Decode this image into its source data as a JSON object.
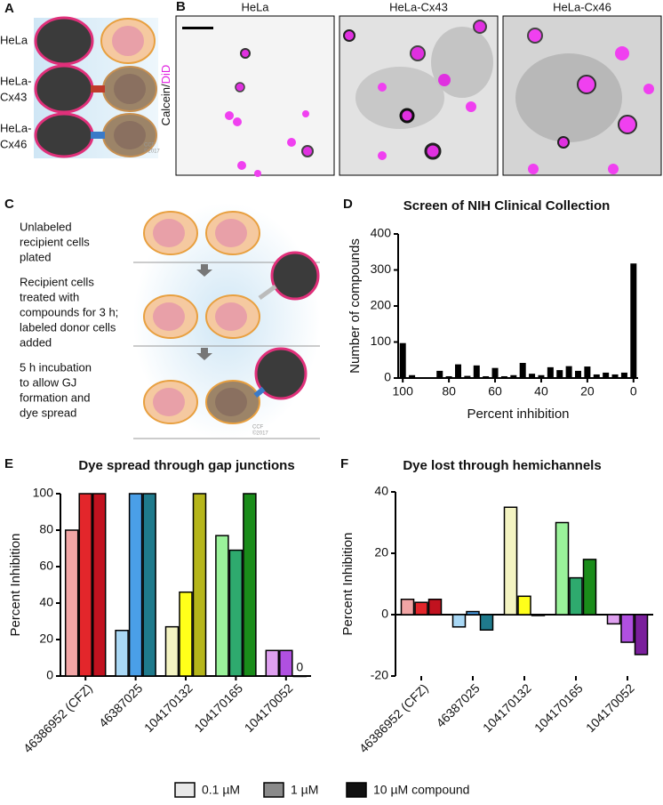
{
  "panel_labels": [
    "A",
    "B",
    "C",
    "D",
    "E",
    "F"
  ],
  "panel_a": {
    "rows": [
      [
        "HeLa"
      ],
      [
        "HeLa-",
        "Cx43"
      ],
      [
        "HeLa-",
        "Cx46"
      ]
    ],
    "credit": [
      "CCF",
      "©2017"
    ]
  },
  "panel_b": {
    "titles": [
      "HeLa",
      "HeLa-Cx43",
      "HeLa-Cx46"
    ],
    "stain": [
      "Calcein/",
      "DiD"
    ]
  },
  "panel_c": {
    "steps": [
      [
        "Unlabeled",
        "recipient cells",
        "plated"
      ],
      [
        "Recipient cells",
        "treated with",
        "compounds for 3 h;",
        "labeled donor cells",
        "added"
      ],
      [
        "5 h incubation",
        "to allow GJ",
        "formation and",
        "dye spread"
      ]
    ],
    "credit": [
      "CCF",
      "©2017"
    ]
  },
  "chart_data": [
    {
      "type": "histogram",
      "title": "Screen of  NIH Clinical Collection",
      "x_label": "Percent inhibition",
      "y_label": "Number of compounds",
      "x": [
        100,
        96,
        92,
        88,
        84,
        80,
        76,
        72,
        68,
        64,
        60,
        56,
        52,
        48,
        44,
        40,
        36,
        32,
        28,
        24,
        20,
        16,
        12,
        8,
        4,
        0
      ],
      "values": [
        97,
        8,
        0,
        2,
        20,
        5,
        38,
        6,
        35,
        5,
        28,
        5,
        8,
        42,
        12,
        8,
        30,
        22,
        33,
        20,
        32,
        10,
        15,
        10,
        15,
        318
      ],
      "color": "#000000",
      "xlim": [
        102,
        -2
      ],
      "xticks": [
        100,
        80,
        60,
        40,
        20,
        0
      ],
      "ylim": [
        0,
        400
      ],
      "yticks": [
        0,
        100,
        200,
        300,
        400
      ]
    },
    {
      "type": "grouped_bar",
      "title": "Dye spread through gap junctions",
      "y_label": "Percent Inhibition",
      "categories": [
        "46386952 (CFZ)",
        "46387025",
        "104170132",
        "104170165",
        "104170052"
      ],
      "series": [
        {
          "name": "0.1 µM",
          "color": "#e8e8e8",
          "bar_colors": [
            "#f2a5a5",
            "#a9d8f5",
            "#f4f4c2",
            "#9af29a",
            "#dfa0f0"
          ],
          "values": [
            80,
            25,
            27,
            77,
            14
          ]
        },
        {
          "name": "1 µM",
          "color": "#8a8a8a",
          "bar_colors": [
            "#e3262b",
            "#4a9fe8",
            "#ffff1a",
            "#2eaa6e",
            "#b050e0"
          ],
          "values": [
            100,
            100,
            46,
            69,
            14
          ]
        },
        {
          "name": "10 µM compound",
          "color": "#111111",
          "bar_colors": [
            "#c1121f",
            "#1f7a8c",
            "#b5b51a",
            "#1a8c1a",
            "#7a1f9c"
          ],
          "values": [
            100,
            100,
            100,
            100,
            0
          ]
        }
      ],
      "ylim": [
        0,
        100
      ],
      "yticks": [
        0,
        20,
        40,
        60,
        80,
        100
      ],
      "zero_labels": true
    },
    {
      "type": "grouped_bar",
      "title": "Dye lost through hemichannels",
      "y_label": "Percent Inhibition",
      "categories": [
        "46386952 (CFZ)",
        "46387025",
        "104170132",
        "104170165",
        "104170052"
      ],
      "series": [
        {
          "bar_colors": [
            "#f2a5a5",
            "#a9d8f5",
            "#f4f4c2",
            "#9af29a",
            "#dfa0f0"
          ],
          "values": [
            5,
            -4,
            35,
            30,
            -3
          ]
        },
        {
          "bar_colors": [
            "#e3262b",
            "#4a9fe8",
            "#ffff1a",
            "#2eaa6e",
            "#b050e0"
          ],
          "values": [
            4,
            1,
            6,
            12,
            -9
          ]
        },
        {
          "bar_colors": [
            "#c1121f",
            "#1f7a8c",
            "#b5b51a",
            "#1a8c1a",
            "#7a1f9c"
          ],
          "values": [
            5,
            -5,
            -0.3,
            18,
            -13
          ]
        }
      ],
      "ylim": [
        -20,
        40
      ],
      "yticks": [
        -20,
        0,
        20,
        40
      ]
    }
  ]
}
